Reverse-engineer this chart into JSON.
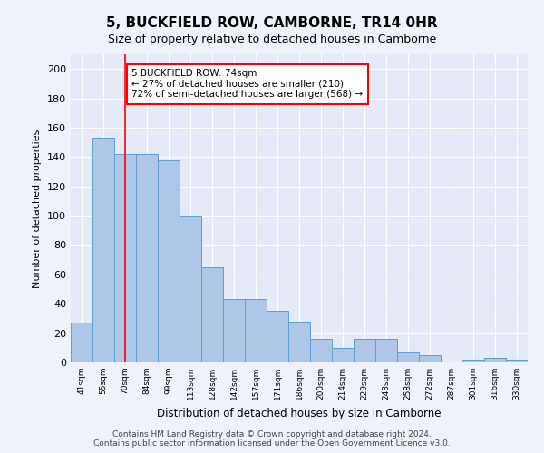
{
  "title": "5, BUCKFIELD ROW, CAMBORNE, TR14 0HR",
  "subtitle": "Size of property relative to detached houses in Camborne",
  "xlabel": "Distribution of detached houses by size in Camborne",
  "ylabel": "Number of detached properties",
  "categories": [
    "41sqm",
    "55sqm",
    "70sqm",
    "84sqm",
    "99sqm",
    "113sqm",
    "128sqm",
    "142sqm",
    "157sqm",
    "171sqm",
    "186sqm",
    "200sqm",
    "214sqm",
    "229sqm",
    "243sqm",
    "258sqm",
    "272sqm",
    "287sqm",
    "301sqm",
    "316sqm",
    "330sqm"
  ],
  "bar_values": [
    27,
    153,
    142,
    142,
    138,
    100,
    65,
    43,
    43,
    35,
    28,
    16,
    10,
    16,
    16,
    7,
    5,
    0,
    2,
    3,
    2
  ],
  "bar_color": "#aec6e8",
  "bar_edge_color": "#5a9fd4",
  "red_line_x": 2.0,
  "annotation_text": "5 BUCKFIELD ROW: 74sqm\n← 27% of detached houses are smaller (210)\n72% of semi-detached houses are larger (568) →",
  "ylim": [
    0,
    210
  ],
  "yticks": [
    0,
    20,
    40,
    60,
    80,
    100,
    120,
    140,
    160,
    180,
    200
  ],
  "footer": "Contains HM Land Registry data © Crown copyright and database right 2024.\nContains public sector information licensed under the Open Government Licence v3.0.",
  "bg_color": "#eef2fb",
  "plot_bg_color": "#e4eaf7"
}
